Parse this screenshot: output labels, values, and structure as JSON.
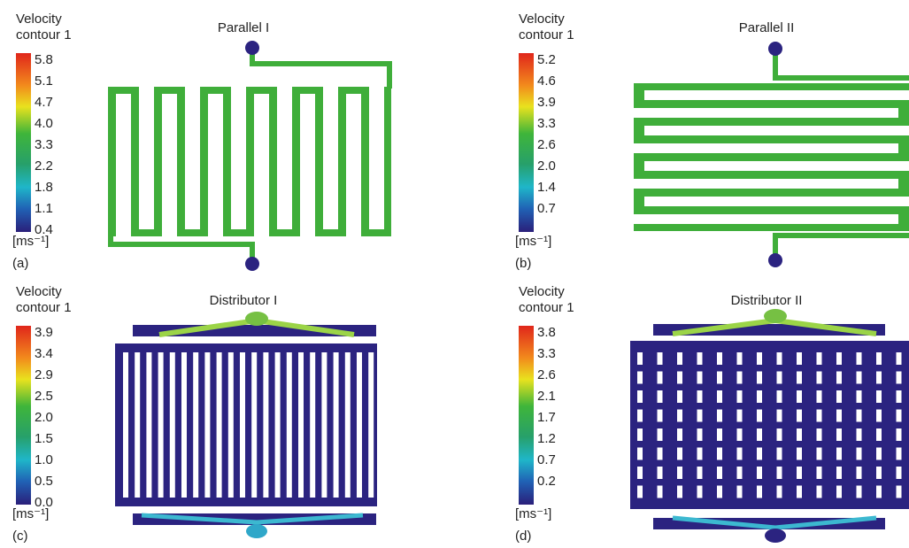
{
  "panels": [
    {
      "label": "(a)",
      "title": "Parallel I",
      "legend_title": [
        "Velocity",
        "contour 1"
      ],
      "legend_ticks": [
        "5.8",
        "5.1",
        "4.7",
        "4.0",
        "3.3",
        "2.2",
        "1.8",
        "1.1",
        "0.4"
      ],
      "unit": "[ms⁻¹]"
    },
    {
      "label": "(b)",
      "title": "Parallel II",
      "legend_title": [
        "Velocity",
        "contour 1"
      ],
      "legend_ticks": [
        "5.2",
        "4.6",
        "3.9",
        "3.3",
        "2.6",
        "2.0",
        "1.4",
        "0.7"
      ],
      "unit": "[ms⁻¹]"
    },
    {
      "label": "(c)",
      "title": "Distributor I",
      "legend_title": [
        "Velocity",
        "contour 1"
      ],
      "legend_ticks": [
        "3.9",
        "3.4",
        "2.9",
        "2.5",
        "2.0",
        "1.5",
        "1.0",
        "0.5",
        "0.0"
      ],
      "unit": "[ms⁻¹]"
    },
    {
      "label": "(d)",
      "title": "Distributor II",
      "legend_title": [
        "Velocity",
        "contour 1"
      ],
      "legend_ticks": [
        "3.8",
        "3.3",
        "2.6",
        "2.1",
        "1.7",
        "1.2",
        "0.7",
        "0.2"
      ],
      "unit": "[ms⁻¹]"
    }
  ]
}
